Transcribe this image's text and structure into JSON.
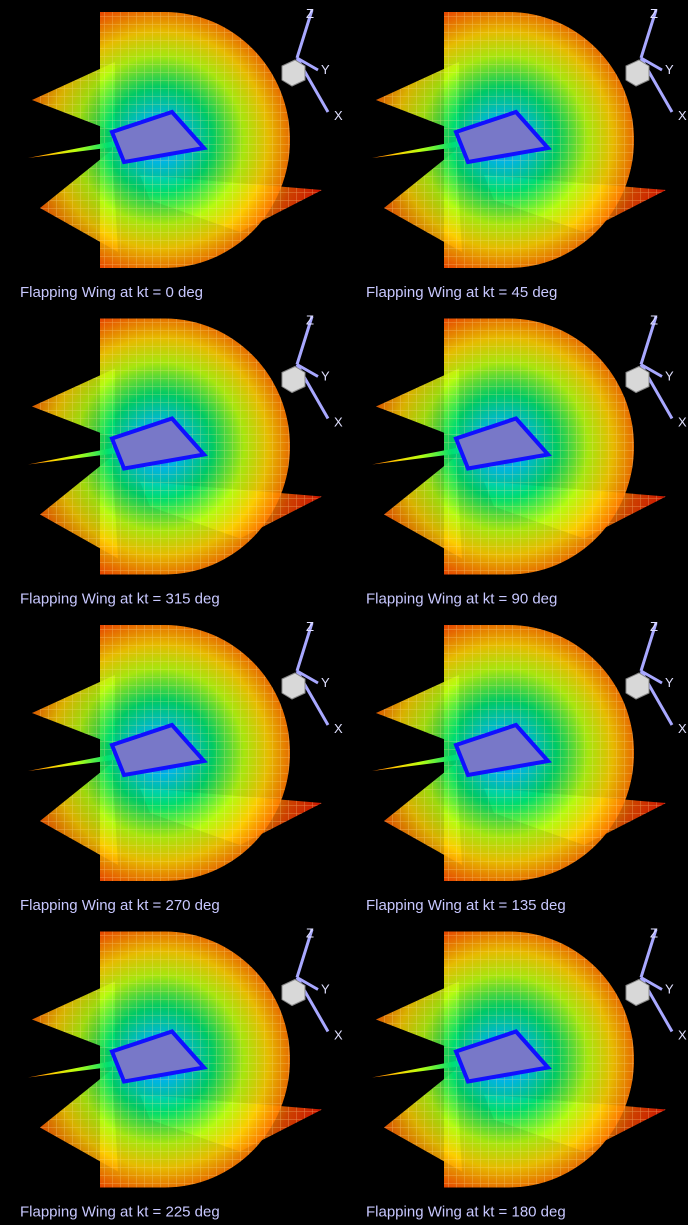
{
  "panels": [
    {
      "caption": "Flapping Wing at kt = 0 deg",
      "axis_labels": [
        "Z",
        "Y",
        "X"
      ]
    },
    {
      "caption": "Flapping Wing at kt = 45 deg",
      "axis_labels": [
        "Z",
        "Y",
        "X"
      ]
    },
    {
      "caption": "Flapping Wing at kt = 315 deg",
      "axis_labels": [
        "Z",
        "Y",
        "X"
      ]
    },
    {
      "caption": "Flapping Wing at kt = 90 deg",
      "axis_labels": [
        "Z",
        "Y",
        "X"
      ]
    },
    {
      "caption": "Flapping Wing at kt = 270 deg",
      "axis_labels": [
        "Z",
        "Y",
        "X"
      ]
    },
    {
      "caption": "Flapping Wing at kt = 135 deg",
      "axis_labels": [
        "Z",
        "Y",
        "X"
      ]
    },
    {
      "caption": "Flapping Wing at kt = 225 deg",
      "axis_labels": [
        "Z",
        "Y",
        "X"
      ]
    },
    {
      "caption": "Flapping Wing at kt = 180 deg",
      "axis_labels": [
        "Z",
        "Y",
        "X"
      ]
    }
  ]
}
